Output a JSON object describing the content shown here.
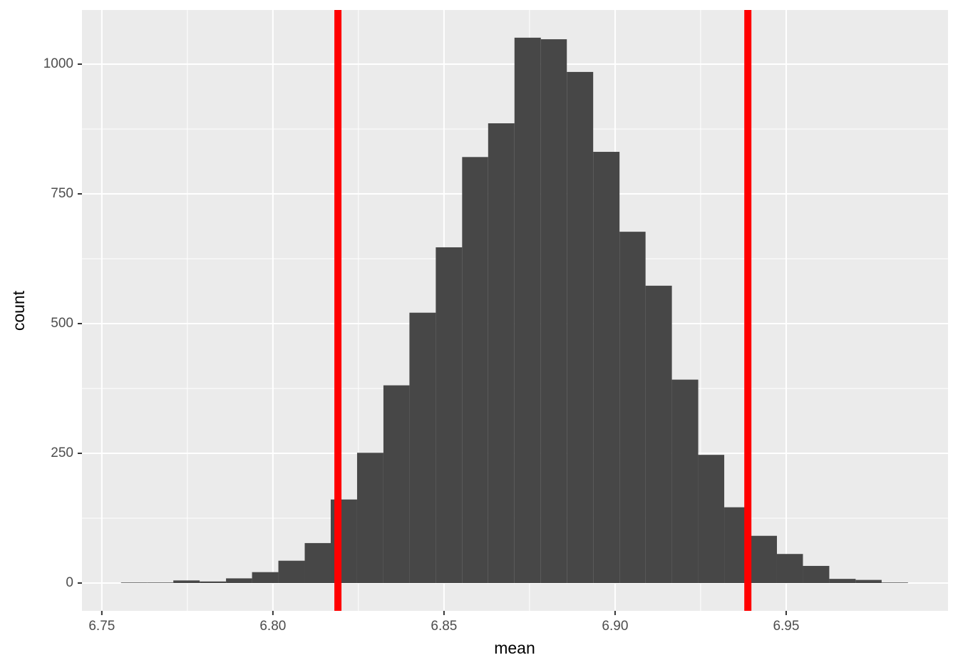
{
  "chart_data": {
    "type": "histogram",
    "xlabel": "mean",
    "ylabel": "count",
    "bins": [
      6.7556,
      6.7633,
      6.7709,
      6.7786,
      6.7863,
      6.7939,
      6.8016,
      6.8093,
      6.8169,
      6.8246,
      6.8323,
      6.8399,
      6.8476,
      6.8553,
      6.8629,
      6.8706,
      6.8783,
      6.8859,
      6.8936,
      6.9013,
      6.9089,
      6.9166,
      6.9243,
      6.9319,
      6.9396,
      6.9473,
      6.9549,
      6.9626,
      6.9703,
      6.9779,
      6.9856
    ],
    "values": [
      1,
      1,
      5,
      3,
      9,
      21,
      43,
      77,
      161,
      251,
      381,
      521,
      647,
      821,
      886,
      1051,
      1048,
      985,
      831,
      677,
      573,
      392,
      247,
      146,
      91,
      56,
      33,
      8,
      6,
      1
    ],
    "color": "#474747",
    "vlines": [
      6.819,
      6.9388
    ],
    "vline_color": "#ff0000",
    "xlim": [
      6.7442,
      6.9973
    ],
    "ylim": [
      -53.6,
      1104.4
    ],
    "xticks": [
      {
        "value": 6.75,
        "label": "6.75"
      },
      {
        "value": 6.8,
        "label": "6.80"
      },
      {
        "value": 6.85,
        "label": "6.85"
      },
      {
        "value": 6.9,
        "label": "6.90"
      },
      {
        "value": 6.95,
        "label": "6.95"
      }
    ],
    "yticks": [
      0,
      250,
      500,
      750,
      1000
    ],
    "grid": true
  }
}
